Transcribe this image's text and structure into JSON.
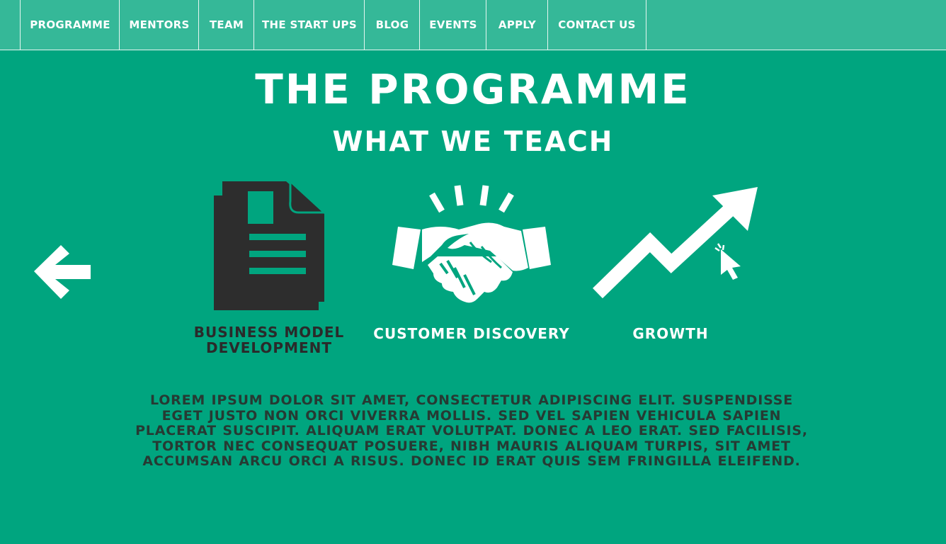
{
  "nav": {
    "items": [
      {
        "label": "PROGRAMME"
      },
      {
        "label": "MENTORS"
      },
      {
        "label": "TEAM"
      },
      {
        "label": "THE START UPS"
      },
      {
        "label": "BLOG"
      },
      {
        "label": "EVENTS"
      },
      {
        "label": "APPLY"
      },
      {
        "label": "CONTACT US"
      }
    ]
  },
  "main": {
    "title": "THE PROGRAMME",
    "subtitle": "WHAT WE TEACH",
    "features": [
      {
        "label": "BUSINESS MODEL DEVELOPMENT",
        "icon": "document-icon"
      },
      {
        "label": "CUSTOMER DISCOVERY",
        "icon": "handshake-icon"
      },
      {
        "label": "GROWTH",
        "icon": "growth-arrow-icon"
      }
    ],
    "description": "LOREM IPSUM DOLOR SIT AMET, CONSECTETUR ADIPISCING ELIT. SUSPENDISSE EGET JUSTO NON ORCI VIVERRA MOLLIS. SED VEL SAPIEN VEHICULA SAPIEN PLACERAT SUSCIPIT. ALIQUAM ERAT VOLUTPAT. DONEC A LEO ERAT. SED FACILISIS, TORTOR NEC CONSEQUAT POSUERE, NIBH MAURIS ALIQUAM TURPIS, SIT AMET ACCUMSAN ARCU ORCI A RISUS. DONEC ID ERAT QUIS SEM FRINGILLA ELEIFEND."
  },
  "colors": {
    "background": "#00a57f",
    "nav_background": "#35b898",
    "dark_text": "#2a2a2a"
  }
}
